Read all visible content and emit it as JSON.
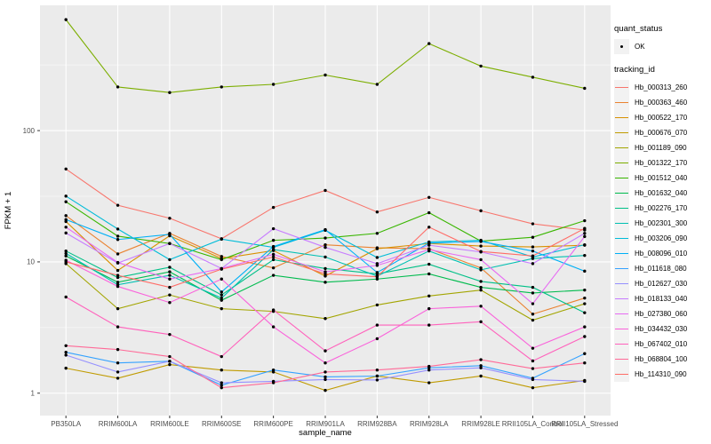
{
  "colors": {
    "panel_bg": "#EBEBEB",
    "grid": "#FFFFFF",
    "point": "#000000",
    "tick_text": "#4D4D4D",
    "tick_mark": "#333333",
    "axis_title": "#000000",
    "legend_key_bg": "#F2F2F2"
  },
  "legend": {
    "quant": {
      "title": "quant_status",
      "items": [
        {
          "label": "OK",
          "marker": "point"
        }
      ]
    },
    "tracking": {
      "title": "tracking_id"
    }
  },
  "chart_data": {
    "type": "line",
    "title": "",
    "xlabel": "sample_name",
    "ylabel": "FPKM + 1",
    "scale_y": "log10",
    "ylim": [
      0.675,
      900
    ],
    "y_major_breaks": [
      1,
      10,
      100
    ],
    "y_major_labels": [
      "1",
      "10",
      "100"
    ],
    "y_minor_breaks": [
      3.1623,
      31.623,
      316.23
    ],
    "grid": true,
    "legend_position": "right",
    "marker": "black-point",
    "categories": [
      "PB350LA",
      "RRIM600LA",
      "RRIM600LE",
      "RRIM600SE",
      "RRIM600PE",
      "RRIM901LA",
      "RRIM928BA",
      "RRIM928LA",
      "RRIM928LE",
      "RRII105LA_Control",
      "RRII105LA_Stressed"
    ],
    "series": [
      {
        "name": "Hb_000313_260",
        "color": "#F8766D",
        "values": [
          51,
          27,
          21.5,
          15,
          26,
          35,
          24,
          31,
          24.5,
          19.5,
          17.5
        ]
      },
      {
        "name": "Hb_000363_460",
        "color": "#EA8331",
        "values": [
          22.5,
          11.5,
          16.5,
          11,
          9,
          13.5,
          12.8,
          12.6,
          9,
          4.0,
          5.3
        ]
      },
      {
        "name": "Hb_000522_170",
        "color": "#D89000",
        "values": [
          20.3,
          8.6,
          15.8,
          10.6,
          12.2,
          7.8,
          12.6,
          13.8,
          13.2,
          13.0,
          13.4
        ]
      },
      {
        "name": "Hb_000676_070",
        "color": "#C09B00",
        "values": [
          1.55,
          1.3,
          1.65,
          1.5,
          1.45,
          1.05,
          1.35,
          1.2,
          1.35,
          1.1,
          1.25
        ]
      },
      {
        "name": "Hb_001189_090",
        "color": "#A3A500",
        "values": [
          9.7,
          4.4,
          5.6,
          4.4,
          4.2,
          3.7,
          4.7,
          5.5,
          6.1,
          3.6,
          4.8
        ]
      },
      {
        "name": "Hb_001322_170",
        "color": "#7CAE00",
        "values": [
          700,
          215,
          195,
          215,
          225,
          265,
          225,
          460,
          310,
          255,
          210
        ]
      },
      {
        "name": "Hb_001512_040",
        "color": "#39B600",
        "values": [
          28.7,
          15.7,
          13.8,
          10.4,
          14.6,
          15.2,
          16.5,
          23.7,
          14.4,
          15.4,
          20.6
        ]
      },
      {
        "name": "Hb_001632_040",
        "color": "#00BB4E",
        "values": [
          11.1,
          7.0,
          8.4,
          5.1,
          7.9,
          7.0,
          7.4,
          8.1,
          6.4,
          5.8,
          6.1
        ]
      },
      {
        "name": "Hb_002276_170",
        "color": "#00C087",
        "values": [
          12.1,
          7.6,
          9.1,
          5.6,
          10.4,
          8.9,
          8.1,
          9.6,
          7.1,
          6.4,
          4.1
        ]
      },
      {
        "name": "Hb_002301_300",
        "color": "#00C0B2",
        "values": [
          11.6,
          6.7,
          7.9,
          5.3,
          12.4,
          10.9,
          7.8,
          12.1,
          8.7,
          10.6,
          11.2
        ]
      },
      {
        "name": "Hb_003206_090",
        "color": "#00BCD8",
        "values": [
          31.7,
          17.8,
          10.4,
          14.9,
          12.9,
          17.4,
          10.8,
          14.2,
          14.6,
          10.9,
          13.5
        ]
      },
      {
        "name": "Hb_008096_010",
        "color": "#00B0F6",
        "values": [
          21,
          14.8,
          16.2,
          5.9,
          13.1,
          17.6,
          8.3,
          13.9,
          14.3,
          12.1,
          8.5
        ]
      },
      {
        "name": "Hb_011618_080",
        "color": "#35A2FF",
        "values": [
          2.05,
          1.7,
          1.75,
          1.15,
          1.5,
          1.33,
          1.35,
          1.56,
          1.62,
          1.3,
          2.0
        ]
      },
      {
        "name": "Hb_012627_030",
        "color": "#9590FF",
        "values": [
          1.95,
          1.45,
          1.75,
          1.2,
          1.23,
          1.27,
          1.26,
          1.5,
          1.56,
          1.27,
          1.23
        ]
      },
      {
        "name": "Hb_018133_040",
        "color": "#C77CFF",
        "values": [
          16.6,
          9.8,
          13.8,
          8.9,
          17.9,
          12.9,
          9.7,
          13.4,
          11.9,
          9.7,
          16.5
        ]
      },
      {
        "name": "Hb_027380_060",
        "color": "#E76BF3",
        "values": [
          18.4,
          9.9,
          7.4,
          8.9,
          11.4,
          8.4,
          9.4,
          12.4,
          10.4,
          4.8,
          15.6
        ]
      },
      {
        "name": "Hb_034432_030",
        "color": "#FA62DB",
        "values": [
          10.3,
          6.5,
          4.9,
          7.4,
          3.2,
          1.7,
          2.6,
          4.4,
          4.6,
          2.2,
          3.2
        ]
      },
      {
        "name": "Hb_067402_010",
        "color": "#FF62BC",
        "values": [
          5.4,
          3.2,
          2.8,
          1.9,
          4.3,
          2.1,
          3.3,
          3.3,
          3.5,
          1.76,
          2.7
        ]
      },
      {
        "name": "Hb_068804_100",
        "color": "#FF6A98",
        "values": [
          2.3,
          2.15,
          1.9,
          1.1,
          1.2,
          1.45,
          1.5,
          1.6,
          1.8,
          1.54,
          1.7
        ]
      },
      {
        "name": "Hb_114310_090",
        "color": "#FF6C67",
        "values": [
          10.0,
          7.9,
          6.4,
          8.8,
          10.9,
          8.1,
          7.7,
          18.4,
          12.0,
          11.1,
          18.0
        ]
      }
    ]
  }
}
